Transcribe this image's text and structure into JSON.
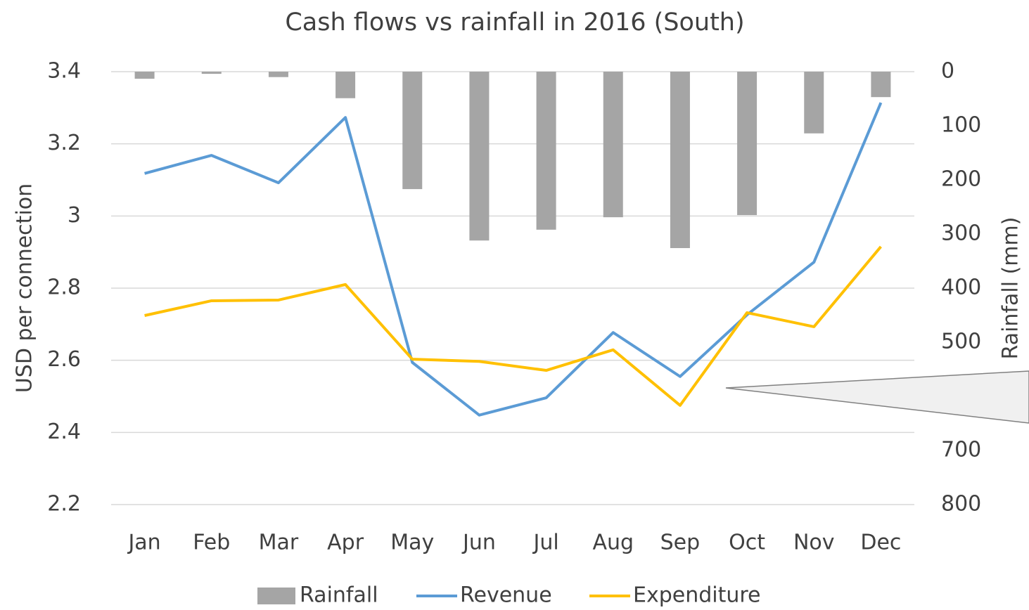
{
  "chart_data": {
    "type": "bar-line",
    "title": "Cash flows vs rainfall in 2016 (South)",
    "categories": [
      "Jan",
      "Feb",
      "Mar",
      "Apr",
      "May",
      "Jun",
      "Jul",
      "Aug",
      "Sep",
      "Oct",
      "Nov",
      "Dec"
    ],
    "ylabel": "USD per connection",
    "y2label": "Rainfall (mm)",
    "ylim": [
      2.2,
      3.4
    ],
    "yticks": [
      2.2,
      2.4,
      2.6,
      2.8,
      3,
      3.2,
      3.4
    ],
    "y2lim": [
      800,
      0
    ],
    "y2ticks": [
      0,
      100,
      200,
      300,
      400,
      500,
      700,
      800
    ],
    "y2_inverted": true,
    "grid": true,
    "legend": "bottom",
    "series": [
      {
        "name": "Rainfall",
        "type": "bar",
        "axis": "y2",
        "color": "#a5a5a5",
        "values": [
          13,
          4,
          10,
          49,
          217,
          312,
          292,
          269,
          326,
          265,
          114,
          47
        ]
      },
      {
        "name": "Revenue",
        "type": "line",
        "color": "#5b9bd5",
        "values": [
          3.118,
          3.168,
          3.092,
          3.273,
          2.594,
          2.448,
          2.496,
          2.677,
          2.555,
          2.726,
          2.872,
          3.314
        ]
      },
      {
        "name": "Expenditure",
        "type": "line",
        "color": "#ffc000",
        "values": [
          2.724,
          2.765,
          2.767,
          2.81,
          2.603,
          2.597,
          2.572,
          2.629,
          2.475,
          2.732,
          2.693,
          2.915
        ]
      }
    ]
  }
}
